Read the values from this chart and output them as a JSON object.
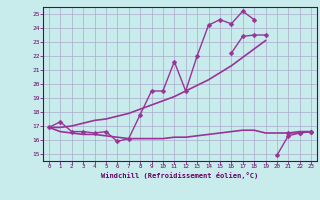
{
  "xlabel": "Windchill (Refroidissement éolien,°C)",
  "background_color": "#c8ecec",
  "line_color": "#993399",
  "grid_color": "#aaaacc",
  "spine_color": "#660066",
  "xlim": [
    -0.5,
    23.5
  ],
  "ylim": [
    14.5,
    25.5
  ],
  "xticks": [
    0,
    1,
    2,
    3,
    4,
    5,
    6,
    7,
    8,
    9,
    10,
    11,
    12,
    13,
    14,
    15,
    16,
    17,
    18,
    19,
    20,
    21,
    22,
    23
  ],
  "yticks": [
    15,
    16,
    17,
    18,
    19,
    20,
    21,
    22,
    23,
    24,
    25
  ],
  "lines": [
    {
      "x": [
        0,
        1,
        2,
        3,
        4,
        5,
        6,
        7,
        8,
        9,
        10,
        11,
        12,
        13,
        14,
        15,
        16,
        17,
        18
      ],
      "y": [
        16.9,
        17.3,
        16.6,
        16.6,
        16.5,
        16.6,
        15.9,
        16.1,
        17.8,
        19.5,
        19.5,
        21.6,
        19.5,
        22.0,
        24.2,
        24.6,
        24.3,
        25.2,
        24.6
      ],
      "marker": "D",
      "markersize": 2.5,
      "linewidth": 1.0
    },
    {
      "x": [
        16,
        17,
        18,
        19
      ],
      "y": [
        22.2,
        23.4,
        23.5,
        23.5
      ],
      "marker": "D",
      "markersize": 2.5,
      "linewidth": 1.0
    },
    {
      "x": [
        0,
        1,
        2,
        3,
        4,
        5,
        6,
        7,
        8,
        9,
        10,
        11,
        12,
        13,
        14,
        15,
        16,
        17,
        18,
        19,
        20,
        21,
        22,
        23
      ],
      "y": [
        16.9,
        16.6,
        16.5,
        16.4,
        16.4,
        16.3,
        16.2,
        16.1,
        16.1,
        16.1,
        16.1,
        16.2,
        16.2,
        16.3,
        16.4,
        16.5,
        16.6,
        16.7,
        16.7,
        16.5,
        16.5,
        16.5,
        16.6,
        16.6
      ],
      "marker": null,
      "markersize": 0,
      "linewidth": 1.2
    },
    {
      "x": [
        0,
        1,
        2,
        3,
        4,
        5,
        6,
        7,
        8,
        9,
        10,
        11,
        12,
        13,
        14,
        15,
        16,
        17,
        18,
        19
      ],
      "y": [
        16.9,
        16.9,
        17.0,
        17.2,
        17.4,
        17.5,
        17.7,
        17.9,
        18.2,
        18.5,
        18.8,
        19.1,
        19.5,
        19.9,
        20.3,
        20.8,
        21.3,
        21.9,
        22.5,
        23.1
      ],
      "marker": null,
      "markersize": 0,
      "linewidth": 1.2
    },
    {
      "x": [
        20,
        21,
        22,
        23
      ],
      "y": [
        14.9,
        16.3,
        16.5,
        16.6
      ],
      "marker": "D",
      "markersize": 2.5,
      "linewidth": 1.0
    },
    {
      "x": [
        21,
        22,
        23
      ],
      "y": [
        16.5,
        16.5,
        16.6
      ],
      "marker": "D",
      "markersize": 2.5,
      "linewidth": 1.0
    }
  ]
}
